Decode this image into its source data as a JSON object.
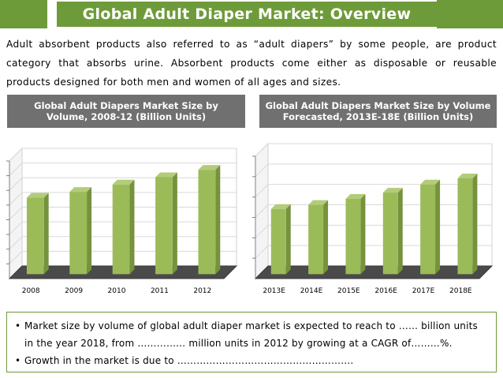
{
  "page": {
    "title": "Global Adult Diaper Market: Overview",
    "intro": "Adult absorbent products also referred to as “adult diapers” by some people, are product category that absorbs urine. Absorbent products come either as disposable or reusable products designed for both men and women of all ages and sizes."
  },
  "colors": {
    "accent": "#6e9b3a",
    "bar_front": "#9bbb59",
    "bar_side": "#76923c",
    "header_bg": "#707070"
  },
  "chart_data": [
    {
      "type": "bar",
      "title": "Global Adult Diapers Market Size by Volume, 2008-12 (Billion Units)",
      "categories": [
        "2008",
        "2009",
        "2010",
        "2011",
        "2012"
      ],
      "values": [
        5.2,
        5.6,
        6.1,
        6.6,
        7.1
      ],
      "ylim": [
        0,
        8
      ],
      "xlabel": "",
      "ylabel": "",
      "grid": true,
      "legend": "none"
    },
    {
      "type": "bar",
      "title": "Global Adult Diapers Market Size by Volume Forecasted, 2013E-18E (Billion Units)",
      "categories": [
        "2013E",
        "2014E",
        "2015E",
        "2016E",
        "2017E",
        "2018E"
      ],
      "values": [
        3.2,
        3.4,
        3.7,
        4.0,
        4.4,
        4.7
      ],
      "ylim": [
        0,
        6
      ],
      "xlabel": "",
      "ylabel": "",
      "grid": true,
      "legend": "none"
    }
  ],
  "bullets": [
    "Market size by volume of global adult diaper market is expected to reach to …… billion units in the year 2018, from …………… million units in 2012 by growing at a CAGR of………%.",
    "Growth in the market is due to ………………………………………………."
  ]
}
